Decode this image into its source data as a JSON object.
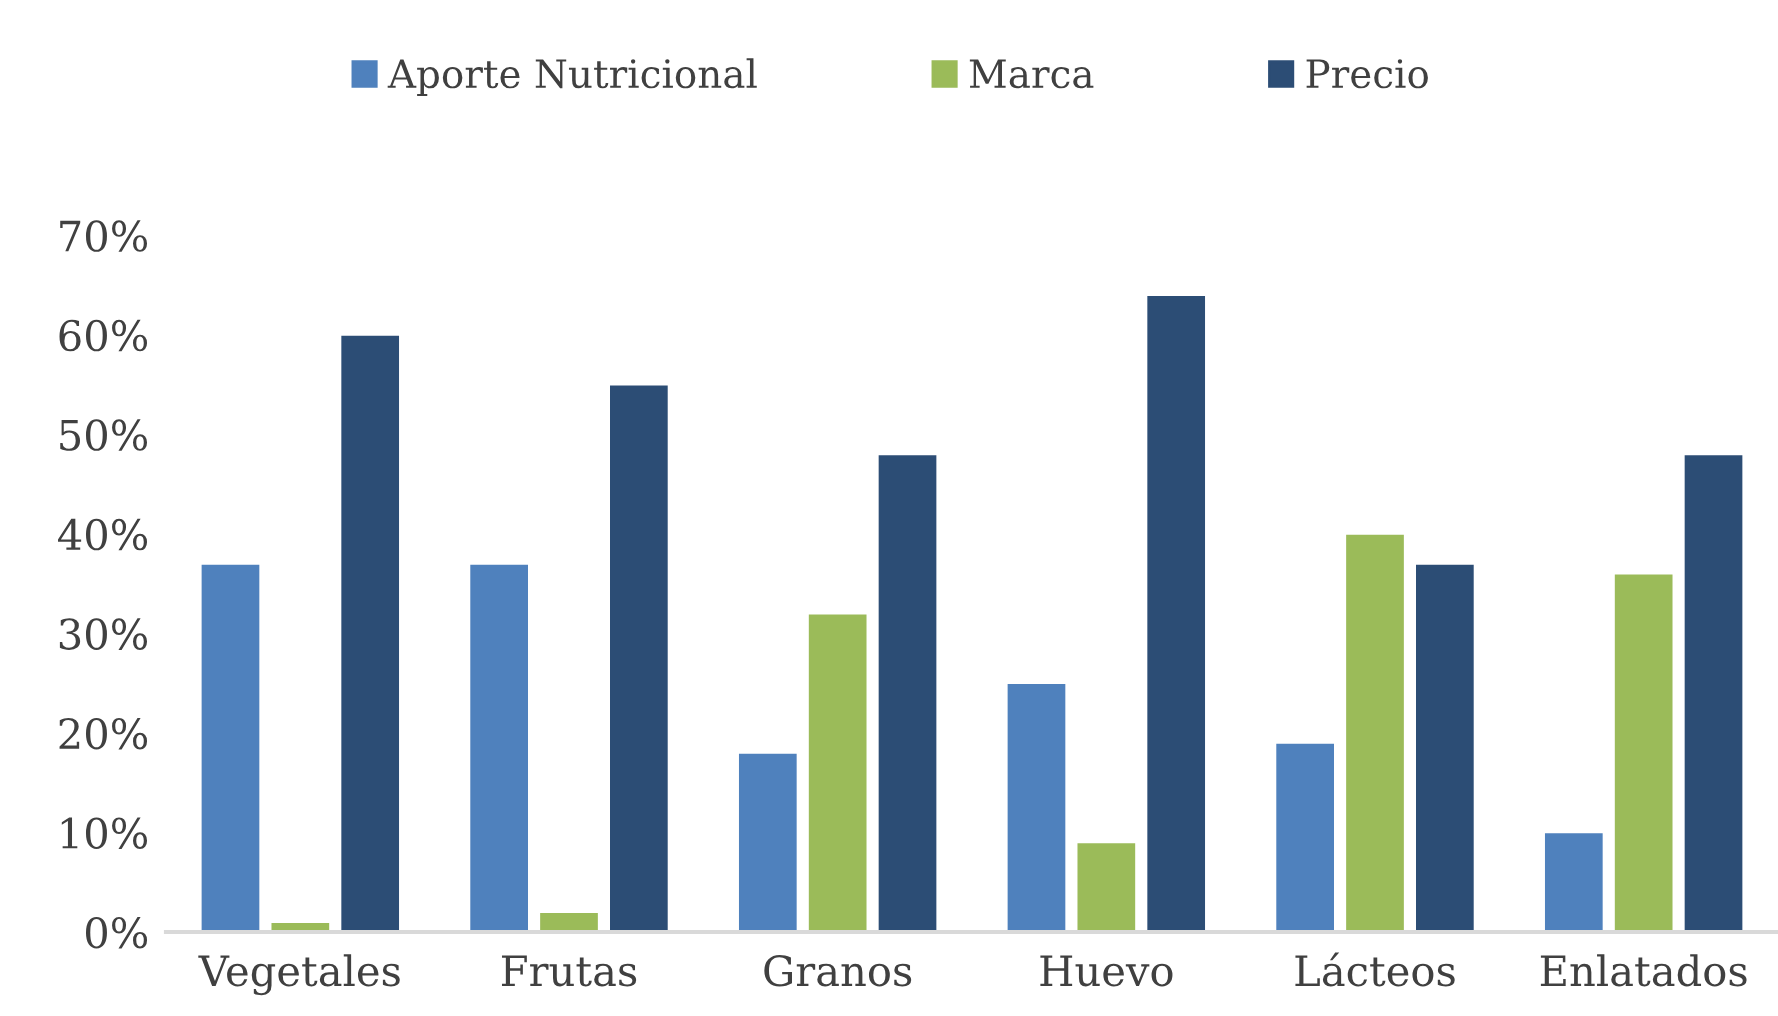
{
  "chart_data": {
    "type": "bar",
    "categories": [
      "Vegetales",
      "Frutas",
      "Granos",
      "Huevo",
      "Lácteos",
      "Enlatados"
    ],
    "series": [
      {
        "name": "Aporte Nutricional",
        "color": "#4f81bd",
        "values": [
          37,
          37,
          18,
          25,
          19,
          10
        ]
      },
      {
        "name": "Marca",
        "color": "#9bbb59",
        "values": [
          1,
          2,
          32,
          9,
          40,
          36
        ]
      },
      {
        "name": "Precio",
        "color": "#2c4d75",
        "values": [
          60,
          55,
          48,
          64,
          37,
          48
        ]
      }
    ],
    "ylim": [
      0,
      70
    ],
    "yticks": [
      {
        "value": 0,
        "label": "0%"
      },
      {
        "value": 10,
        "label": "10%"
      },
      {
        "value": 20,
        "label": "20%"
      },
      {
        "value": 30,
        "label": "30%"
      },
      {
        "value": 40,
        "label": "40%"
      },
      {
        "value": 50,
        "label": "50%"
      },
      {
        "value": 60,
        "label": "60%"
      },
      {
        "value": 70,
        "label": "70%"
      }
    ],
    "grid": false,
    "legend": "top"
  }
}
